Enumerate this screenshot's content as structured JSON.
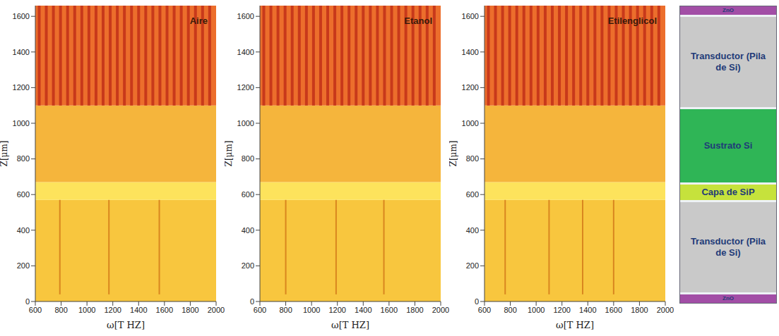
{
  "chart_data": [
    {
      "type": "heatmap",
      "title": "Aire",
      "xlabel": "ω[T HZ]",
      "ylabel": "Z[μm]",
      "xlim": [
        600,
        2000
      ],
      "xticks": [
        600,
        800,
        1000,
        1200,
        1400,
        1600,
        1800,
        2000
      ],
      "ylim": [
        0,
        1660
      ],
      "yticks": [
        0,
        200,
        400,
        600,
        800,
        1000,
        1200,
        1400,
        1600
      ],
      "grid": false,
      "regions": [
        {
          "z": [
            0,
            570
          ],
          "color": "#f8c63e"
        },
        {
          "z": [
            570,
            670
          ],
          "color": "#fde35c"
        },
        {
          "z": [
            670,
            1100
          ],
          "color": "#f5b53c"
        },
        {
          "z": [
            1100,
            1660
          ],
          "color": "#ec6e2c"
        }
      ],
      "stripes": {
        "z": [
          1100,
          1660
        ],
        "color": "#c8391b",
        "x": [
          630,
          685,
          740,
          795,
          850,
          905,
          960,
          1015,
          1070,
          1125,
          1180,
          1235,
          1290,
          1345,
          1400,
          1455,
          1510,
          1565,
          1620,
          1675,
          1730,
          1785,
          1840,
          1895,
          1950
        ]
      },
      "resonances": {
        "z": [
          40,
          570
        ],
        "color": "#d9861f",
        "x": [
          790,
          1170,
          1560
        ]
      }
    },
    {
      "type": "heatmap",
      "title": "Etanol",
      "xlabel": "ω[T HZ]",
      "ylabel": "Z[μm]",
      "xlim": [
        600,
        2000
      ],
      "xticks": [
        600,
        800,
        1000,
        1200,
        1400,
        1600,
        1800,
        2000
      ],
      "ylim": [
        0,
        1660
      ],
      "yticks": [
        0,
        200,
        400,
        600,
        800,
        1000,
        1200,
        1400,
        1600
      ],
      "grid": false,
      "regions": [
        {
          "z": [
            0,
            570
          ],
          "color": "#f8c63e"
        },
        {
          "z": [
            570,
            670
          ],
          "color": "#fde35c"
        },
        {
          "z": [
            670,
            1100
          ],
          "color": "#f5b53c"
        },
        {
          "z": [
            1100,
            1660
          ],
          "color": "#ec6e2c"
        }
      ],
      "stripes": {
        "z": [
          1100,
          1660
        ],
        "color": "#c8391b",
        "x": [
          630,
          685,
          740,
          795,
          850,
          905,
          960,
          1015,
          1070,
          1125,
          1180,
          1235,
          1290,
          1345,
          1400,
          1455,
          1510,
          1565,
          1620,
          1675,
          1730,
          1785,
          1840,
          1895,
          1950
        ]
      },
      "resonances": {
        "z": [
          40,
          570
        ],
        "color": "#d9861f",
        "x": [
          800,
          1190,
          1560
        ]
      }
    },
    {
      "type": "heatmap",
      "title": "Etilenglicol",
      "xlabel": "ω[T HZ]",
      "ylabel": "Z[μm]",
      "xlim": [
        600,
        2000
      ],
      "xticks": [
        600,
        800,
        1000,
        1200,
        1400,
        1600,
        1800,
        2000
      ],
      "ylim": [
        0,
        1660
      ],
      "yticks": [
        0,
        200,
        400,
        600,
        800,
        1000,
        1200,
        1400,
        1600
      ],
      "grid": false,
      "regions": [
        {
          "z": [
            0,
            570
          ],
          "color": "#f8c63e"
        },
        {
          "z": [
            570,
            670
          ],
          "color": "#fde35c"
        },
        {
          "z": [
            670,
            1100
          ],
          "color": "#f5b53c"
        },
        {
          "z": [
            1100,
            1660
          ],
          "color": "#ec6e2c"
        }
      ],
      "stripes": {
        "z": [
          1100,
          1660
        ],
        "color": "#c8391b",
        "x": [
          630,
          685,
          740,
          795,
          850,
          905,
          960,
          1015,
          1070,
          1125,
          1180,
          1235,
          1290,
          1345,
          1400,
          1455,
          1510,
          1565,
          1620,
          1675,
          1730,
          1785,
          1840,
          1895,
          1950
        ]
      },
      "resonances": {
        "z": [
          40,
          570
        ],
        "color": "#d9861f",
        "x": [
          760,
          1100,
          1360,
          1600
        ]
      }
    }
  ],
  "diagram": {
    "layers": [
      {
        "label": "ZnO",
        "color": "#a24ea6"
      },
      {
        "label": "Transductor (Pila de Si)",
        "color": "#c9c9c9"
      },
      {
        "label": "Sustrato Si",
        "color": "#2fb556"
      },
      {
        "label": "Capa de SiP",
        "color": "#c6e23c"
      },
      {
        "label": "Transductor (Pila de Si)",
        "color": "#c9c9c9"
      },
      {
        "label": "ZnO",
        "color": "#a24ea6"
      }
    ]
  }
}
